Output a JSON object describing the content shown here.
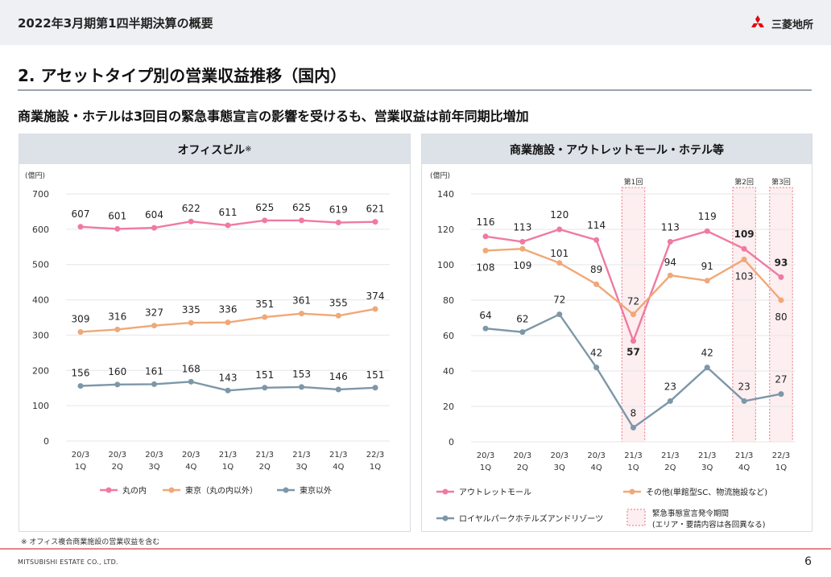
{
  "header": {
    "title": "2022年3月期第1四半期決算の概要",
    "logo_text": "三菱地所"
  },
  "section_title": "2. アセットタイプ別の営業収益推移（国内）",
  "subtitle": "商業施設・ホテルは3回目の緊急事態宣言の影響を受けるも、営業収益は前年同期比増加",
  "footnote": "※ オフィス複合商業施設の営業収益を含む",
  "company": "MITSUBISHI ESTATE CO., LTD.",
  "page_number": "6",
  "colors": {
    "pink": "#f07aa1",
    "orange": "#f0a878",
    "gray": "#7d97a8",
    "emergency_fill": "#fdeef0",
    "emergency_border": "#e8707e"
  },
  "chart_data": [
    {
      "type": "line",
      "title": "オフィスビル",
      "title_note": "※",
      "ylabel": "(億円)",
      "ylim": [
        0,
        700
      ],
      "yticks": [
        0,
        100,
        200,
        300,
        400,
        500,
        600,
        700
      ],
      "grid": true,
      "categories": [
        "20/3\n1Q",
        "20/3\n2Q",
        "20/3\n3Q",
        "20/3\n4Q",
        "21/3\n1Q",
        "21/3\n2Q",
        "21/3\n3Q",
        "21/3\n4Q",
        "22/3\n1Q"
      ],
      "series": [
        {
          "name": "丸の内",
          "color": "#f07aa1",
          "values": [
            607,
            601,
            604,
            622,
            611,
            625,
            625,
            619,
            621
          ]
        },
        {
          "name": "東京（丸の内以外）",
          "color": "#f0a878",
          "values": [
            309,
            316,
            327,
            335,
            336,
            351,
            361,
            355,
            374
          ]
        },
        {
          "name": "東京以外",
          "color": "#7d97a8",
          "values": [
            156,
            160,
            161,
            168,
            143,
            151,
            153,
            146,
            151
          ]
        }
      ],
      "legend": "bottom"
    },
    {
      "type": "line",
      "title": "商業施設・アウトレットモール・ホテル等",
      "ylabel": "(億円)",
      "ylim": [
        0,
        140
      ],
      "yticks": [
        0,
        20,
        40,
        60,
        80,
        100,
        120,
        140
      ],
      "grid": true,
      "categories": [
        "20/3\n1Q",
        "20/3\n2Q",
        "20/3\n3Q",
        "20/3\n4Q",
        "21/3\n1Q",
        "21/3\n2Q",
        "21/3\n3Q",
        "21/3\n4Q",
        "22/3\n1Q"
      ],
      "series": [
        {
          "name": "アウトレットモール",
          "color": "#f07aa1",
          "values": [
            116,
            113,
            120,
            114,
            57,
            113,
            119,
            109,
            93
          ]
        },
        {
          "name": "その他(単館型SC、物流施設など)",
          "color": "#f0a878",
          "values": [
            108,
            109,
            101,
            89,
            72,
            94,
            91,
            103,
            80
          ]
        },
        {
          "name": "ロイヤルパークホテルズアンドリゾーツ",
          "color": "#7d97a8",
          "values": [
            64,
            62,
            72,
            42,
            8,
            23,
            42,
            23,
            27
          ]
        }
      ],
      "emergency_periods": [
        {
          "label": "第1回",
          "category_index": 4
        },
        {
          "label": "第2回",
          "category_index": 7
        },
        {
          "label": "第3回",
          "category_index": 8
        }
      ],
      "emergency_legend": [
        "緊急事態宣言発令期間",
        "(エリア・要請内容は各回異なる)"
      ],
      "legend": "bottom"
    }
  ]
}
